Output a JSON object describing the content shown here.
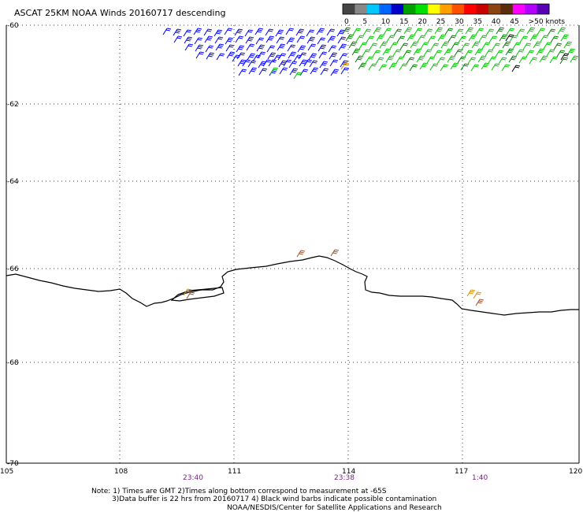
{
  "title": "ASCAT 25KM NOAA Winds 20160717 descending",
  "legend": {
    "labels": [
      "0",
      "5",
      "10",
      "15",
      "20",
      "25",
      "30",
      "35",
      "40",
      "45",
      ">50 knots"
    ],
    "colors": [
      "#444444",
      "#888888",
      "#00c8ff",
      "#0064ff",
      "#0000c8",
      "#00a000",
      "#00e000",
      "#ffff00",
      "#ffa000",
      "#ff5000",
      "#ff0000",
      "#c80000",
      "#8b4513",
      "#5a2d0c",
      "#ff00ff",
      "#b400ff",
      "#5a00b4"
    ]
  },
  "lat_labels": [
    "-60",
    "-62",
    "-64",
    "-66",
    "-68",
    "-70"
  ],
  "lon_labels": [
    "105",
    "108",
    "111",
    "114",
    "117",
    "120"
  ],
  "time_labels": [
    "23:40",
    "23:38",
    "1:40"
  ],
  "notes": {
    "line1": "Note: 1) Times are GMT 2)Times along bottom correspond to measurement at -65S",
    "line2": "3)Data buffer is 22 hrs from 20160717 4) Black wind barbs indicate possible contamination",
    "line3": "NOAA/NESDIS/Center for Satellite Applications and Research"
  },
  "barb_colors": {
    "blue": "#0000ff",
    "green": "#00c800",
    "dark_green": "#008000",
    "orange": "#e08a00",
    "brown": "#a0522d",
    "black": "#000000"
  }
}
